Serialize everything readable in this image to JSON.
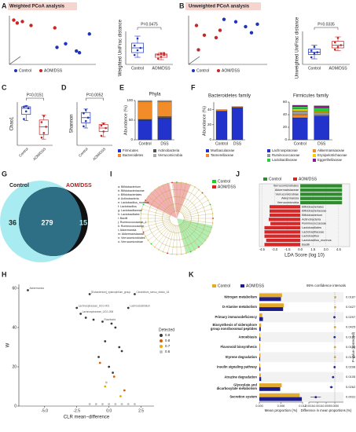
{
  "chart_data": [
    {
      "type": "scatter",
      "panel": "A",
      "title": "Weighted PCoA analysis",
      "xlim": [
        -1,
        1
      ],
      "ylim": [
        -1,
        1
      ],
      "series": [
        {
          "name": "Control",
          "color": "#1f35b8",
          "x": [
            0.3,
            0.55,
            0.62,
            0.85,
            0.1
          ],
          "values": [
            -0.15,
            -0.45,
            -0.52,
            0.25,
            -0.3
          ]
        },
        {
          "name": "AOM/DSS",
          "color": "#c62828",
          "x": [
            -0.9,
            -0.82,
            -0.7,
            -0.5,
            0.05
          ],
          "values": [
            0.82,
            0.7,
            0.76,
            0.6,
            0.5
          ]
        }
      ]
    },
    {
      "type": "box",
      "ylabel": "Weighted UniFrac distance",
      "annotation": "P=0.0475",
      "categories": [
        "Control",
        "AOM/DSS"
      ],
      "ylim": [
        0.2,
        0.9
      ],
      "boxes": [
        {
          "min": 0.35,
          "q1": 0.45,
          "median": 0.55,
          "q3": 0.65,
          "max": 0.8,
          "color": "#1f35b8"
        },
        {
          "min": 0.3,
          "q1": 0.35,
          "median": 0.4,
          "q3": 0.42,
          "max": 0.45,
          "color": "#c62828"
        }
      ],
      "points": [
        [
          0.4,
          0.5,
          0.55,
          0.6,
          0.75
        ],
        [
          0.32,
          0.36,
          0.4,
          0.41,
          0.43,
          0.44
        ]
      ]
    },
    {
      "type": "scatter",
      "panel": "B",
      "title": "Unweighted PCoA analysis",
      "xlim": [
        -1,
        1
      ],
      "ylim": [
        -1,
        1
      ],
      "series": [
        {
          "name": "Control",
          "color": "#1f35b8",
          "x": [
            0.2,
            0.45,
            0.6,
            0.75,
            -0.1
          ],
          "values": [
            0.75,
            0.55,
            0.3,
            0.65,
            0.85
          ]
        },
        {
          "name": "AOM/DSS",
          "color": "#c62828",
          "x": [
            -0.8,
            -0.6,
            -0.3,
            -0.2,
            -0.75
          ],
          "values": [
            0.6,
            0.2,
            0.1,
            0.4,
            -0.4
          ]
        }
      ]
    },
    {
      "type": "box",
      "ylabel": "Unweighted UniFrac distance",
      "annotation": "P=0.0335",
      "categories": [
        "Control",
        "AOM/DSS"
      ],
      "ylim": [
        0.2,
        0.8
      ],
      "boxes": [
        {
          "min": 0.3,
          "q1": 0.38,
          "median": 0.42,
          "q3": 0.48,
          "max": 0.55,
          "color": "#1f35b8"
        },
        {
          "min": 0.45,
          "q1": 0.5,
          "median": 0.55,
          "q3": 0.62,
          "max": 0.7,
          "color": "#c62828"
        }
      ],
      "points": [
        [
          0.33,
          0.4,
          0.42,
          0.45,
          0.52
        ],
        [
          0.47,
          0.52,
          0.55,
          0.6,
          0.68
        ]
      ]
    },
    {
      "type": "box",
      "panel": "C",
      "ylabel": "Chao1",
      "annotation": "P=0.0151",
      "categories": [
        "Control",
        "AOM/DSS"
      ],
      "ylim": [
        180,
        320
      ],
      "boxes": [
        {
          "min": 260,
          "q1": 280,
          "median": 300,
          "q3": 305,
          "max": 308,
          "color": "#1f35b8"
        },
        {
          "min": 200,
          "q1": 215,
          "median": 240,
          "q3": 262,
          "max": 278,
          "color": "#c62828"
        }
      ],
      "points": [
        [
          265,
          290,
          300,
          305,
          307
        ],
        [
          205,
          220,
          240,
          255,
          275
        ]
      ]
    },
    {
      "type": "box",
      "panel": "D",
      "ylabel": "Shannon",
      "annotation": "P=0.0052",
      "categories": [
        "Control",
        "AOM/DSS"
      ],
      "ylim": [
        3,
        5.5
      ],
      "boxes": [
        {
          "min": 4.0,
          "q1": 4.3,
          "median": 4.6,
          "q3": 4.9,
          "max": 5.1,
          "color": "#1f35b8"
        },
        {
          "min": 3.5,
          "q1": 3.8,
          "median": 4.0,
          "q3": 4.2,
          "max": 4.3,
          "color": "#c62828"
        }
      ],
      "points": [
        [
          4.1,
          4.4,
          4.6,
          4.85,
          5.05
        ],
        [
          3.55,
          3.8,
          4.0,
          4.15,
          4.25
        ]
      ]
    },
    {
      "type": "stacked",
      "panel": "E",
      "title": "Phyla",
      "ylabel": "Abundance (%)",
      "categories": [
        "Control",
        "DSS"
      ],
      "ylim": [
        0,
        100
      ],
      "yticks": [
        0,
        50,
        100
      ],
      "series": [
        {
          "name": "Firmicutes",
          "color": "#2233cc",
          "values": [
            50,
            55
          ]
        },
        {
          "name": "Actinobacteria",
          "color": "#555555",
          "values": [
            2,
            4
          ]
        },
        {
          "name": "Bacteroidetes",
          "color": "#f28c28",
          "values": [
            45,
            38
          ]
        },
        {
          "name": "Verrucomicrobia",
          "color": "#aaaaaa",
          "values": [
            3,
            3
          ]
        }
      ]
    },
    {
      "type": "stacked",
      "panel": "F",
      "title": "Bacteroidetes family",
      "ylabel": "Abundance (%)",
      "categories": [
        "Control",
        "DSS"
      ],
      "ylim": [
        0,
        50
      ],
      "yticks": [
        0,
        20,
        40
      ],
      "series": [
        {
          "name": "Muribaculaceae",
          "color": "#2233cc",
          "values": [
            38,
            43
          ]
        },
        {
          "name": "Tannerellaceae",
          "color": "#f28c28",
          "values": [
            2,
            1
          ]
        }
      ]
    },
    {
      "type": "stacked",
      "title": "Firmicutes family",
      "categories": [
        "Control",
        "DSS"
      ],
      "ylim": [
        0,
        60
      ],
      "yticks": [
        0,
        20,
        40,
        60
      ],
      "series": [
        {
          "name": "Lachnospiraceae",
          "color": "#2233cc",
          "values": [
            35,
            38
          ]
        },
        {
          "name": "Akkermansiaceae",
          "color": "#f28c28",
          "values": [
            5,
            1
          ]
        },
        {
          "name": "Ruminococcaceae",
          "color": "#999999",
          "values": [
            6,
            4
          ]
        },
        {
          "name": "Erysipelotrichaceae",
          "color": "#f5d000",
          "values": [
            3,
            2
          ]
        },
        {
          "name": "Lactobacillaceae",
          "color": "#2ecc40",
          "values": [
            4,
            6
          ]
        },
        {
          "name": "Eggerthellaceae",
          "color": "#8b1a8b",
          "values": [
            2,
            3
          ]
        }
      ]
    },
    {
      "type": "venn",
      "panel": "G",
      "sets": [
        "Control",
        "AOM/DSS"
      ],
      "values": [
        36,
        279,
        15
      ]
    },
    {
      "type": "cladogram",
      "panel": "I",
      "legend": [
        {
          "name": "Control",
          "color": "#22cc22"
        },
        {
          "name": "AOM/DSS",
          "color": "#e02020"
        }
      ],
      "labels": [
        "a: Bifidobacterium",
        "b: Bifidobacteriaceae",
        "c: Bifidobacteriales",
        "d: Actinobacteria",
        "e: Lactobacillus_murinus",
        "f: Lactobacillus",
        "g: Lactobacillaceae",
        "h: Lactobacillales",
        "i: Bacilli",
        "j: Ruminococcaceae_1",
        "k: Ruminococcaceae",
        "l: Akkermansia",
        "m: Akkermansiaceae",
        "n: Verrucomicrobiales",
        "o: Verrucomicrobiae"
      ]
    },
    {
      "type": "hbar",
      "panel": "J",
      "xlabel": "LDA Score (log 10)",
      "xlim": [
        -4.8,
        5.8
      ],
      "xticks": [
        {
          "value": -4.5,
          "label": "-4.5"
        },
        {
          "value": -3,
          "label": "-3.0"
        },
        {
          "value": -1.5,
          "label": "-1.5"
        },
        {
          "value": 0,
          "label": "0.0"
        },
        {
          "value": 1.5,
          "label": "1.5"
        },
        {
          "value": 3,
          "label": "3.0"
        },
        {
          "value": 4.5,
          "label": "4.5"
        }
      ],
      "categories": [
        "Verrucomicrobiales",
        "Akkermansiaceae",
        "Verrucomicrobiae",
        "Akkermansia",
        "Verrucomicrobia",
        "Bifidobacteriales",
        "Bifidobacteriaceae",
        "Bifidobacterium",
        "Actinobacteria",
        "Ruminococcaceae",
        "Lactobacillales",
        "Lactobacillaceae",
        "Lactobacillus",
        "Lactobacillus_murinus",
        "Bacilli"
      ],
      "series": [
        {
          "name": "Control",
          "color": "#2e8b2e",
          "values": [
            4.9,
            4.9,
            4.9,
            4.9,
            4.9,
            null,
            null,
            null,
            null,
            null,
            null,
            null,
            null,
            null,
            null
          ]
        },
        {
          "name": "AOM/DSS",
          "color": "#d62728",
          "values": [
            null,
            null,
            null,
            null,
            null,
            -3.6,
            -3.6,
            -3.6,
            -3.7,
            -3.5,
            -4.2,
            -4.2,
            -4.2,
            -4.0,
            -4.2
          ]
        }
      ]
    },
    {
      "type": "scatter",
      "panel": "H",
      "xlabel": "CLR mean−difference",
      "ylabel": "W",
      "legend_title": "Detected",
      "xlim": [
        -7,
        3.5
      ],
      "ylim": [
        0,
        62
      ],
      "xticks": [
        {
          "value": -5,
          "label": "-5.0"
        },
        {
          "value": -2.5,
          "label": "-2.5"
        },
        {
          "value": 0,
          "label": "0.0"
        },
        {
          "value": 2.5,
          "label": "2.5"
        }
      ],
      "yticks": [
        0,
        20,
        40,
        60
      ],
      "series": [
        {
          "name": "0.9",
          "color": "#3a3a3a",
          "x": [
            -6.3,
            -1.5,
            -2.5,
            -2.2,
            2.0,
            1.5,
            -1.8,
            -1.2,
            -0.5,
            0.2,
            0.5,
            -0.3,
            0.8,
            1.0,
            -0.8,
            0.0,
            0.3
          ],
          "values": [
            59,
            57,
            50,
            47,
            57,
            50,
            45,
            44,
            43,
            42,
            40,
            33,
            30,
            28,
            25,
            20,
            17
          ],
          "labels": [
            "Akkermansia",
            "[Eubacterium]_xylanophilum_group",
            "Lachnospiraceae_UCG-001",
            "Lachnospiraceae_UCG-006",
            "Clostridium_sensu_stricto_18",
            "Lachnoclostridium",
            null,
            null,
            "Roseburia",
            null,
            null,
            null,
            null,
            null,
            null,
            null,
            null
          ]
        },
        {
          "name": "0.8",
          "color": "#d95f02",
          "x": [
            -0.7,
            0.4,
            1.2
          ],
          "values": [
            22,
            15,
            8
          ],
          "labels": [
            null,
            null,
            null
          ]
        },
        {
          "name": "0.7",
          "color": "#e6ab02",
          "x": [
            -0.3,
            0.9
          ],
          "values": [
            10,
            5
          ],
          "labels": [
            null,
            null
          ]
        },
        {
          "name": "0.6",
          "color": "#bdbdbd",
          "x": [
            -1,
            -0.5,
            0,
            0.5,
            1,
            1.5,
            -1.5,
            2,
            -0.2
          ],
          "values": [
            1,
            1,
            1,
            1,
            1,
            1,
            1,
            1,
            12
          ],
          "labels": [
            null,
            null,
            null,
            null,
            null,
            null,
            null,
            null,
            null
          ]
        }
      ]
    },
    {
      "type": "stamp",
      "panel": "K",
      "xlabel": "Mean proportion (%)",
      "x2label": "Difference in mean proportions (%)",
      "ci_title": "95% confidence intervals",
      "plabel": "P-value (corrected)",
      "xlim": [
        0,
        0.012
      ],
      "xticks": [
        {
          "value": 0,
          "label": "0.000"
        },
        {
          "value": 0.006,
          "label": "0.006"
        },
        {
          "value": 0.012,
          "label": "0.012"
        }
      ],
      "x2lim": [
        -0.0015,
        0.0005
      ],
      "x2ticks": [
        {
          "value": -0.0015,
          "label": "-0.0015"
        },
        {
          "value": -0.001,
          "label": "-0.0010"
        },
        {
          "value": -0.0005,
          "label": "-0.0005"
        },
        {
          "value": 0,
          "label": "0.0000"
        }
      ],
      "categories": [
        "Nitrogen metabolism",
        "D-Alanine metabolism",
        "Primary immunodeficiency",
        "Biosynthesis of siderophore\ngroup nonribosomal peptides",
        "Amoebiasis",
        "Flavonoid biosynthesis",
        "Styrene degradation",
        "Insulin signaling pathway",
        "Atrazine degradation",
        "Glyoxylate and\ndicarboxylate metabolism",
        "Secretion system"
      ],
      "series": [
        {
          "name": "Control",
          "color": "#e3a92c",
          "values": [
            0.0063,
            0.0068,
            0.0008,
            0.0005,
            0.0002,
            0.0002,
            0.0003,
            0.0002,
            0.0004,
            0.0062,
            0.0112
          ]
        },
        {
          "name": "AOM/DSS",
          "color": "#1c1c8c",
          "values": [
            0.006,
            0.0066,
            0.001,
            0.0004,
            0.0003,
            0.0001,
            0.0002,
            0.0003,
            0.0005,
            0.0058,
            0.0118
          ]
        }
      ],
      "differences": [
        3e-05,
        2e-05,
        -2e-05,
        1e-05,
        -1e-05,
        1e-05,
        1e-05,
        -1e-05,
        -0.0001,
        -0.0002,
        -0.0011
      ],
      "errors": [
        2e-05,
        2e-05,
        2e-05,
        1e-05,
        1e-05,
        1e-05,
        1e-05,
        1e-05,
        4e-05,
        0.0001,
        0.0003
      ],
      "p_values": [
        0.0187,
        0.0427,
        0.0297,
        0.0425,
        0.0192,
        0.0108,
        0.0198,
        0.0298,
        0.0105,
        0.0262,
        0.0031
      ]
    }
  ]
}
